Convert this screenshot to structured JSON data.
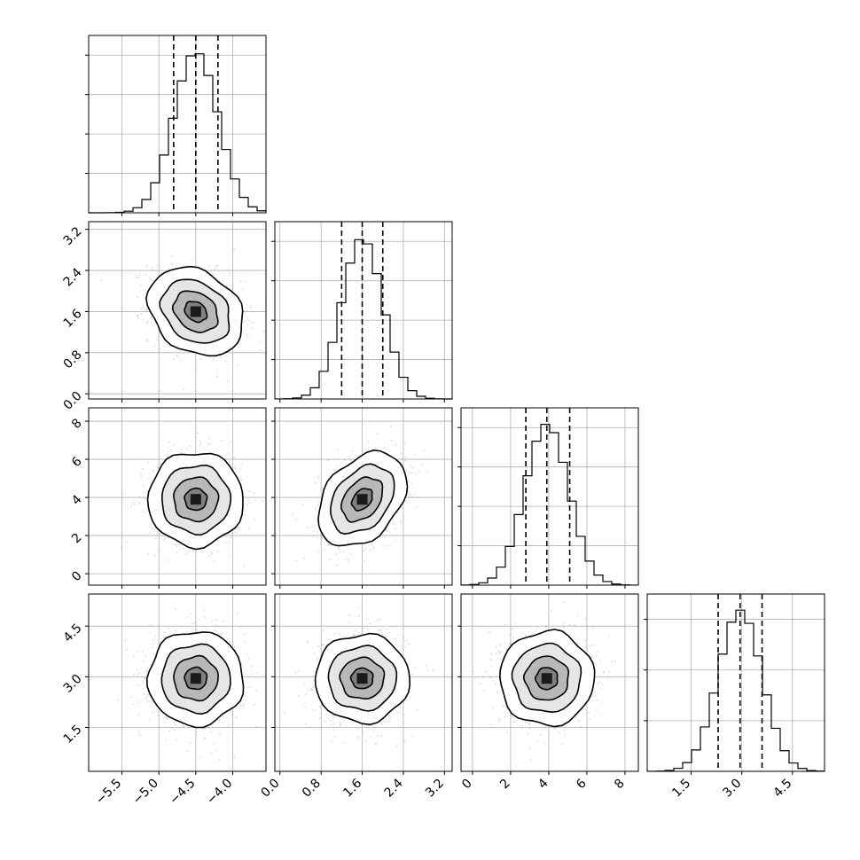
{
  "chart_data": {
    "type": "corner",
    "params": [
      {
        "mean": -4.5,
        "std": 0.3,
        "range": [
          -5.95,
          -3.55
        ],
        "ticks": [
          -5.5,
          -5.0,
          -4.5,
          -4.0
        ],
        "tick_labels": [
          "−5.5",
          "−5.0",
          "−4.5",
          "−4.0"
        ],
        "quantiles": [
          -4.8,
          -4.5,
          -4.2
        ],
        "hist_yticks": 4
      },
      {
        "mean": 1.6,
        "std": 0.4,
        "range": [
          -0.1,
          3.35
        ],
        "ticks": [
          0.0,
          0.8,
          1.6,
          2.4,
          3.2
        ],
        "tick_labels": [
          "0.0",
          "0.8",
          "1.6",
          "2.4",
          "3.2"
        ],
        "quantiles": [
          1.2,
          1.6,
          2.0
        ],
        "hist_yticks": 4
      },
      {
        "mean": 3.9,
        "std": 1.15,
        "range": [
          -0.6,
          8.7
        ],
        "ticks": [
          0,
          2,
          4,
          6,
          8
        ],
        "tick_labels": [
          "0",
          "2",
          "4",
          "6",
          "8"
        ],
        "quantiles": [
          2.8,
          3.9,
          5.1
        ],
        "hist_yticks": 4
      },
      {
        "mean": 2.95,
        "std": 0.65,
        "range": [
          0.2,
          5.45
        ],
        "ticks": [
          1.5,
          3.0,
          4.5
        ],
        "tick_labels": [
          "1.5",
          "3.0",
          "4.5"
        ],
        "quantiles": [
          2.3,
          2.95,
          3.6
        ],
        "hist_yticks": 3
      }
    ],
    "pairs": [
      {
        "x": 0,
        "y": 1,
        "rho": -0.25
      },
      {
        "x": 0,
        "y": 2,
        "rho": 0.0
      },
      {
        "x": 1,
        "y": 2,
        "rho": 0.35
      },
      {
        "x": 0,
        "y": 3,
        "rho": 0.0
      },
      {
        "x": 1,
        "y": 3,
        "rho": 0.0
      },
      {
        "x": 2,
        "y": 3,
        "rho": 0.0
      }
    ],
    "grid": true,
    "colors": {
      "points": "#999999",
      "lines": "#000000",
      "grid": "#b0b0b0"
    }
  }
}
